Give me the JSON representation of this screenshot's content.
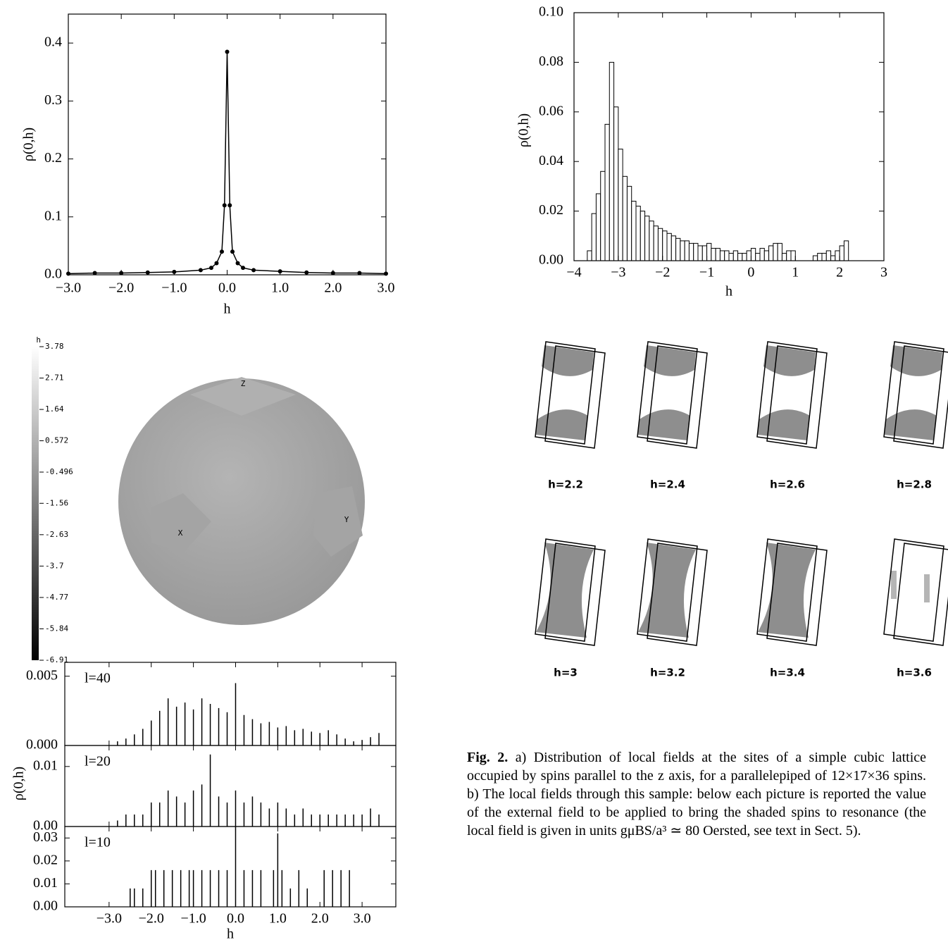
{
  "chart_data": [
    {
      "type": "line",
      "xlabel": "h",
      "ylabel": "ρ(0,h)",
      "x": [
        -3,
        -2.5,
        -2,
        -1.5,
        -1,
        -0.5,
        -0.3,
        -0.2,
        -0.1,
        -0.05,
        0,
        0.05,
        0.1,
        0.2,
        0.3,
        0.5,
        1,
        1.5,
        2,
        2.5,
        3
      ],
      "values": [
        0.002,
        0.003,
        0.003,
        0.004,
        0.005,
        0.008,
        0.012,
        0.02,
        0.04,
        0.12,
        0.385,
        0.12,
        0.04,
        0.02,
        0.012,
        0.008,
        0.006,
        0.004,
        0.003,
        0.003,
        0.002
      ],
      "color": "#000000",
      "xlim": [
        -3,
        3
      ],
      "ylim": [
        0,
        0.45
      ],
      "xticks": [
        {
          "value": -3,
          "label": "−3.0"
        },
        {
          "value": -2,
          "label": "−2.0"
        },
        {
          "value": -1,
          "label": "−1.0"
        },
        {
          "value": 0,
          "label": "0.0"
        },
        {
          "value": 1,
          "label": "1.0"
        },
        {
          "value": 2,
          "label": "2.0"
        },
        {
          "value": 3,
          "label": "3.0"
        }
      ],
      "yticks": [
        {
          "value": 0,
          "label": "0.0"
        },
        0.1,
        0.2,
        0.3,
        0.4
      ]
    },
    {
      "type": "histogram",
      "xlabel": "h",
      "ylabel": "ρ(0,h)",
      "bins": [
        -3.7,
        -3.6,
        -3.5,
        -3.4,
        -3.3,
        -3.2,
        -3.1,
        -3.0,
        -2.9,
        -2.8,
        -2.7,
        -2.6,
        -2.5,
        -2.4,
        -2.3,
        -2.2,
        -2.1,
        -2.0,
        -1.9,
        -1.8,
        -1.7,
        -1.6,
        -1.5,
        -1.4,
        -1.3,
        -1.2,
        -1.1,
        -1.0,
        -0.9,
        -0.8,
        -0.7,
        -0.6,
        -0.5,
        -0.4,
        -0.3,
        -0.2,
        -0.1,
        0.0,
        0.1,
        0.2,
        0.3,
        0.4,
        0.5,
        0.6,
        0.7,
        0.8,
        0.9,
        1.0,
        1.1,
        1.2,
        1.3,
        1.4,
        1.5,
        1.6,
        1.7,
        1.8,
        1.9,
        2.0,
        2.1,
        2.2,
        2.3
      ],
      "values": [
        0.004,
        0.019,
        0.027,
        0.036,
        0.055,
        0.08,
        0.062,
        0.045,
        0.034,
        0.03,
        0.024,
        0.022,
        0.02,
        0.018,
        0.016,
        0.014,
        0.013,
        0.012,
        0.011,
        0.01,
        0.009,
        0.008,
        0.008,
        0.007,
        0.007,
        0.006,
        0.006,
        0.007,
        0.005,
        0.005,
        0.004,
        0.004,
        0.003,
        0.004,
        0.003,
        0.003,
        0.004,
        0.005,
        0.003,
        0.005,
        0.004,
        0.006,
        0.007,
        0.007,
        0.003,
        0.004,
        0.004,
        0,
        0,
        0,
        0,
        0.002,
        0.003,
        0.003,
        0.004,
        0.002,
        0.004,
        0.006,
        0.008,
        0
      ],
      "color": "#ffffff",
      "xlim": [
        -4,
        3
      ],
      "ylim": [
        0,
        0.1
      ],
      "xticks": [
        {
          "value": -4,
          "label": "−4"
        },
        {
          "value": -3,
          "label": "−3"
        },
        {
          "value": -2,
          "label": "−2"
        },
        {
          "value": -1,
          "label": "−1"
        },
        0,
        1,
        2,
        3
      ],
      "yticks": [
        {
          "value": 0,
          "label": "0.00"
        },
        {
          "value": 0.02,
          "label": "0.02"
        },
        {
          "value": 0.04,
          "label": "0.04"
        },
        {
          "value": 0.06,
          "label": "0.06"
        },
        {
          "value": 0.08,
          "label": "0.08"
        },
        {
          "value": 0.1,
          "label": "0.10"
        }
      ]
    },
    {
      "type": "colorbar",
      "title": "h",
      "clim": [
        -6.91,
        3.78
      ],
      "ticks": [
        3.78,
        2.71,
        1.64,
        0.572,
        -0.496,
        -1.56,
        -2.63,
        -3.7,
        -4.77,
        -5.84,
        -6.91
      ],
      "axis_labels": [
        "Z",
        "X",
        "Y"
      ]
    },
    {
      "type": "spikes",
      "xlabel": "h",
      "ylabel": "ρ(0,h)",
      "xlim": [
        -4.05,
        3.8
      ],
      "xticks": [
        {
          "value": -3,
          "label": "−3.0"
        },
        {
          "value": -2,
          "label": "−2.0"
        },
        {
          "value": -1,
          "label": "−1.0"
        },
        {
          "value": 0,
          "label": "0.0"
        },
        {
          "value": 1,
          "label": "1.0"
        },
        {
          "value": 2,
          "label": "2.0"
        },
        {
          "value": 3,
          "label": "3.0"
        }
      ],
      "panels": [
        {
          "label": "l=40",
          "ylim": [
            0,
            0.006
          ],
          "yticks": [
            {
              "value": 0,
              "label": "0.000"
            },
            {
              "value": 0.005,
              "label": "0.005"
            }
          ],
          "x": [
            -2.8,
            -2.6,
            -2.4,
            -2.2,
            -2.0,
            -1.8,
            -1.6,
            -1.4,
            -1.2,
            -1.0,
            -0.8,
            -0.6,
            -0.4,
            -0.2,
            0.0,
            0.2,
            0.4,
            0.6,
            0.8,
            1.0,
            1.2,
            1.4,
            1.6,
            1.8,
            2.0,
            2.2,
            2.4,
            2.6,
            2.8,
            3.0,
            3.2,
            3.4
          ],
          "values": [
            0.0003,
            0.0005,
            0.0008,
            0.0012,
            0.0018,
            0.0025,
            0.0034,
            0.0028,
            0.0031,
            0.0026,
            0.0034,
            0.003,
            0.0027,
            0.0024,
            0.0045,
            0.0022,
            0.0019,
            0.0016,
            0.0017,
            0.0013,
            0.0014,
            0.0011,
            0.0012,
            0.001,
            0.0009,
            0.0011,
            0.0008,
            0.0005,
            0.0003,
            0.0004,
            0.0006,
            0.0009
          ]
        },
        {
          "label": "l=20",
          "ylim": [
            0,
            0.0135
          ],
          "yticks": [
            {
              "value": 0,
              "label": "0.00"
            },
            0.01
          ],
          "x": [
            -2.8,
            -2.6,
            -2.4,
            -2.2,
            -2.0,
            -1.8,
            -1.6,
            -1.4,
            -1.2,
            -1.0,
            -0.8,
            -0.6,
            -0.4,
            -0.2,
            0.0,
            0.2,
            0.4,
            0.6,
            0.8,
            1.0,
            1.2,
            1.4,
            1.6,
            1.8,
            2.0,
            2.2,
            2.4,
            2.6,
            2.8,
            3.0,
            3.2,
            3.4
          ],
          "values": [
            0.001,
            0.002,
            0.002,
            0.002,
            0.004,
            0.004,
            0.006,
            0.005,
            0.004,
            0.006,
            0.007,
            0.012,
            0.005,
            0.004,
            0.006,
            0.004,
            0.005,
            0.004,
            0.003,
            0.004,
            0.003,
            0.002,
            0.003,
            0.002,
            0.002,
            0.002,
            0.002,
            0.002,
            0.002,
            0.002,
            0.003,
            0.002
          ]
        },
        {
          "label": "l=10",
          "ylim": [
            0,
            0.035
          ],
          "yticks": [
            {
              "value": 0,
              "label": "0.00"
            },
            0.01,
            0.02,
            0.03
          ],
          "x": [
            -2.5,
            -2.4,
            -2.2,
            -2.0,
            -1.9,
            -1.7,
            -1.5,
            -1.3,
            -1.1,
            -1.0,
            -0.8,
            -0.6,
            -0.4,
            -0.2,
            0.0,
            0.2,
            0.4,
            0.6,
            0.9,
            1.0,
            1.1,
            1.3,
            1.5,
            1.7,
            2.1,
            2.3,
            2.5,
            2.7
          ],
          "values": [
            0.008,
            0.008,
            0.008,
            0.016,
            0.016,
            0.016,
            0.016,
            0.016,
            0.016,
            0.016,
            0.016,
            0.016,
            0.016,
            0.016,
            0.035,
            0.016,
            0.016,
            0.016,
            0.016,
            0.032,
            0.016,
            0.008,
            0.016,
            0.008,
            0.016,
            0.016,
            0.016,
            0.016
          ]
        }
      ]
    }
  ],
  "cubes": {
    "labels": [
      "h=2.2",
      "h=2.4",
      "h=2.6",
      "h=2.8",
      "h=3",
      "h=3.2",
      "h=3.4",
      "h=3.6"
    ]
  },
  "caption": {
    "label": "Fig. 2.",
    "text": "a) Distribution of local fields at the sites of a simple cubic lattice occupied by spins parallel to the z axis, for a parallelepiped of 12×17×36 spins. b) The local fields through this sample: below each picture is reported the value of the external field to be applied to bring the shaded spins to resonance (the local field is given in units gμBS/a³ ≃ 80 Oersted, see text in Sect. 5)."
  }
}
